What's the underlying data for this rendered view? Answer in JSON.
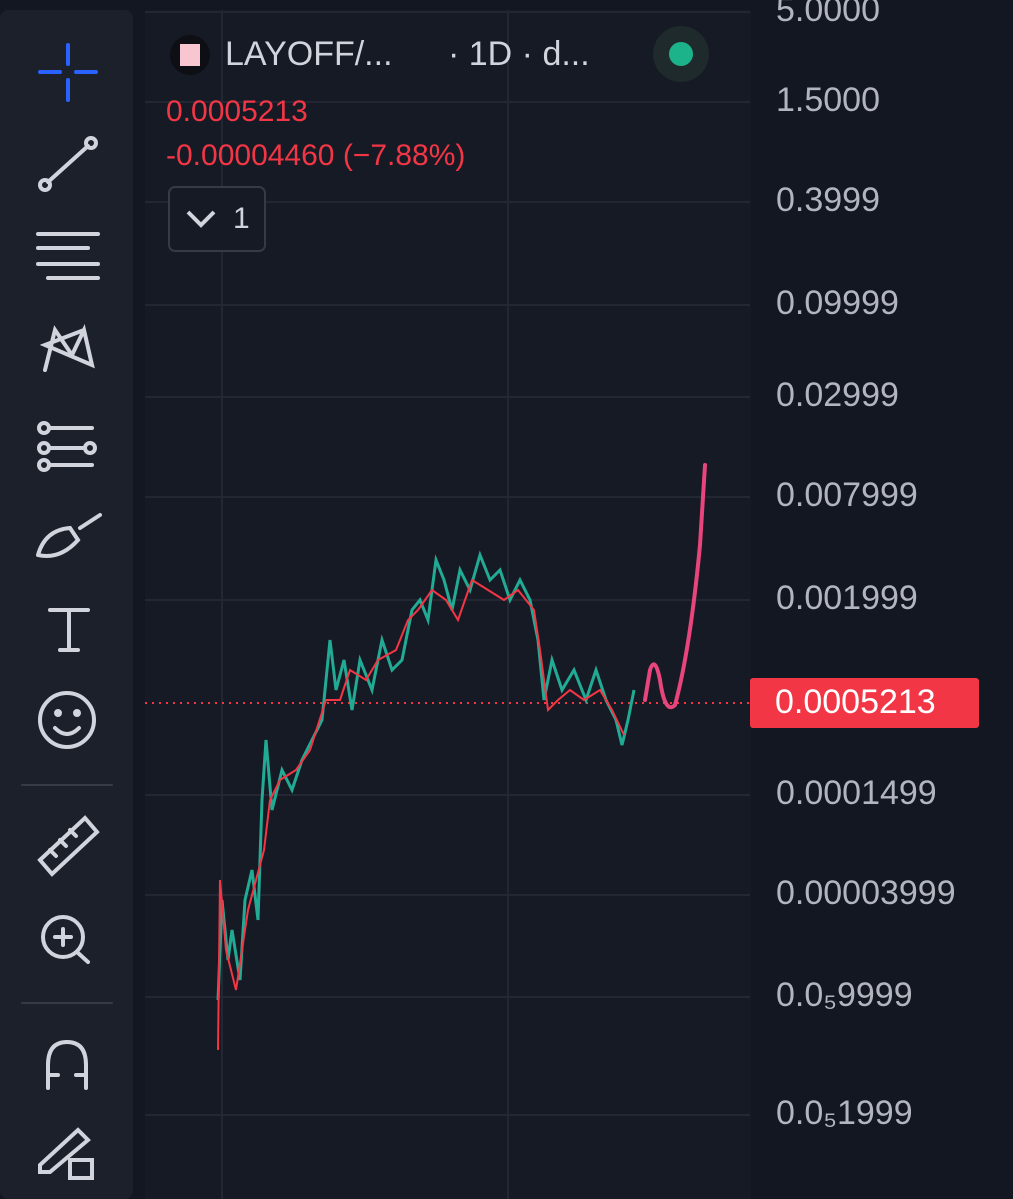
{
  "header": {
    "symbol": "LAYOFF/...",
    "interval": "· 1D · d...",
    "price": "0.0005213",
    "change": "-0.00004460 (−7.88%)",
    "indicators_count": "1"
  },
  "price_axis": {
    "labels": [
      "5.0000",
      "1.5000",
      "0.3999",
      "0.09999",
      "0.02999",
      "0.007999",
      "0.001999",
      "0.0001499",
      "0.00003999",
      "0.0₅9999",
      "0.0₅1999"
    ],
    "last_price": "0.0005213"
  }
}
